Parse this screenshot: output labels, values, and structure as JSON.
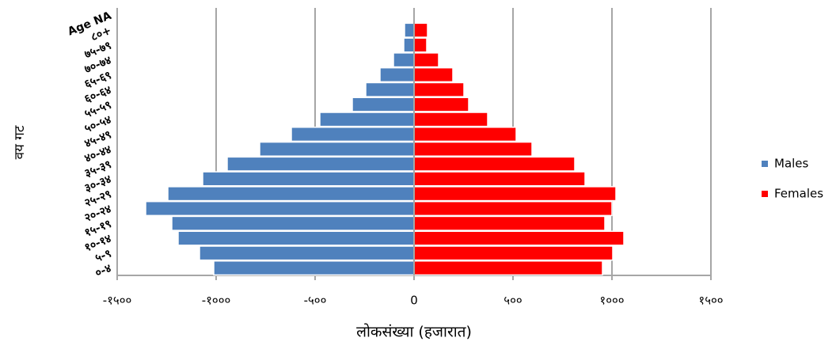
{
  "chart_data": {
    "type": "pyramid",
    "x_label": "लोकसंख्या (हजारात)",
    "y_label": "वय गट",
    "categories": [
      "०-४",
      "५-९",
      "१०-१४",
      "१५-१९",
      "२०-२४",
      "२५-२९",
      "३०-३४",
      "३५-३९",
      "४०-४४",
      "४५-४९",
      "५०-५४",
      "५५-५९",
      "६०-६४",
      "६५-६९",
      "७०-७४",
      "७५-७९",
      "८०+",
      "Age NA"
    ],
    "series": [
      {
        "name": "Males",
        "color": "#4f81bd",
        "values": [
          -1012,
          -1084,
          -1192,
          -1224,
          -1356,
          -1244,
          -1068,
          -944,
          -780,
          -620,
          -476,
          -312,
          -244,
          -172,
          -104,
          -52,
          -48,
          0
        ]
      },
      {
        "name": "Females",
        "color": "#ff0000",
        "values": [
          952,
          1004,
          1060,
          964,
          1000,
          1020,
          864,
          812,
          596,
          516,
          372,
          276,
          252,
          196,
          124,
          64,
          68,
          0
        ]
      }
    ],
    "xlim": [
      -1500,
      1500
    ],
    "xticks": [
      {
        "value": -1500,
        "label": "-१५००"
      },
      {
        "value": -1000,
        "label": "-१०००"
      },
      {
        "value": -500,
        "label": "-५००"
      },
      0,
      {
        "value": 500,
        "label": "५००"
      },
      {
        "value": 1000,
        "label": "१०००"
      },
      {
        "value": 1500,
        "label": "१५००"
      }
    ],
    "grid": true,
    "legend": "right"
  }
}
